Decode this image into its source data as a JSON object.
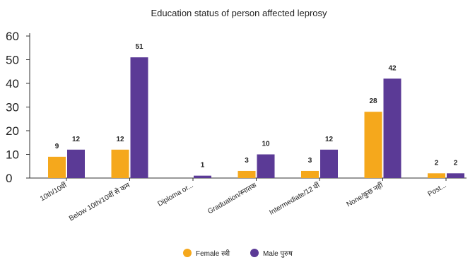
{
  "chart_data": {
    "type": "bar",
    "title": "Education status of person affected leprosy",
    "xlabel": "",
    "ylabel": "",
    "ylim": [
      0,
      60
    ],
    "yticks": [
      0,
      10,
      20,
      30,
      40,
      50,
      60
    ],
    "grid": false,
    "legend_position": "bottom",
    "categories": [
      "10th/10वीं",
      "Below 10th/10वीं से कम",
      "Diploma or...",
      "Graduation/स्नातक",
      "Intermediate/12 वीं",
      "None/कुछ नहीं",
      "Post..."
    ],
    "series": [
      {
        "name": "Female स्त्री",
        "color": "#F5A81C",
        "values": [
          9,
          12,
          null,
          3,
          3,
          28,
          2
        ],
        "labels": [
          "9",
          "12",
          "",
          "3",
          "3",
          "28",
          "2"
        ]
      },
      {
        "name": "Male पुरुष",
        "color": "#5B3A96",
        "values": [
          12,
          51,
          1,
          10,
          12,
          42,
          2
        ],
        "labels": [
          "12",
          "51",
          "1",
          "10",
          "12",
          "42",
          "2"
        ]
      }
    ]
  }
}
